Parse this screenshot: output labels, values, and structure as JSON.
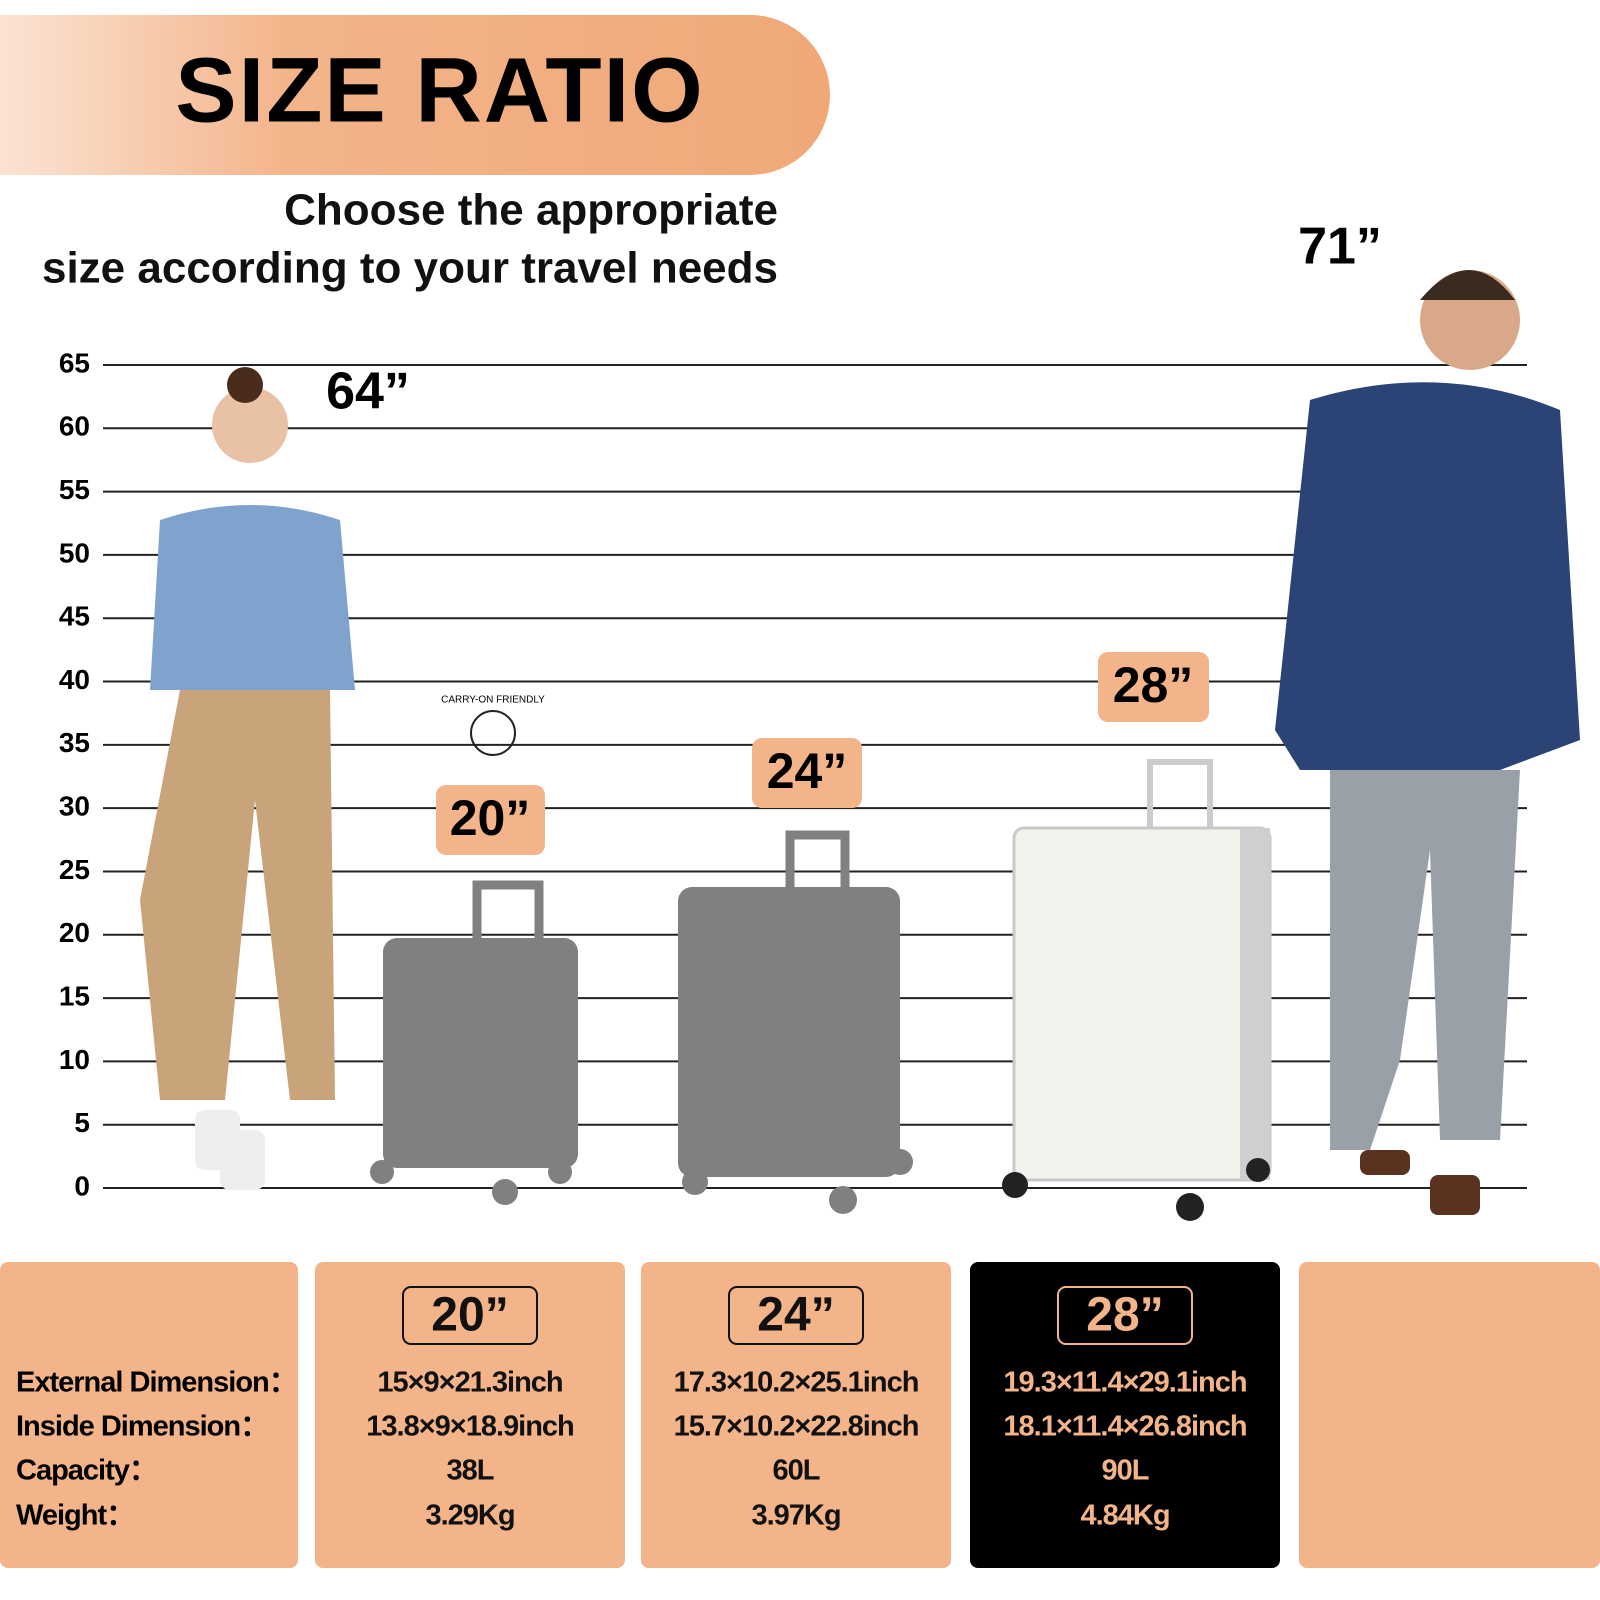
{
  "header": {
    "title": "SIZE RATIO",
    "subtitle": [
      "Choose the appropriate",
      "size according to your travel needs"
    ]
  },
  "scale": {
    "ticks": [
      65,
      60,
      55,
      50,
      45,
      40,
      35,
      30,
      25,
      20,
      15,
      10,
      5,
      0
    ]
  },
  "figures": {
    "woman_height": "64”",
    "man_height": "71”"
  },
  "suitcases": [
    {
      "size": "20”",
      "badge": "CARRY-ON FRIENDLY"
    },
    {
      "size": "24”"
    },
    {
      "size": "28”"
    }
  ],
  "spec_table": {
    "labels": [
      "External Dimension：",
      "Inside Dimension：",
      "Capacity：",
      "Weight："
    ],
    "columns": [
      {
        "size": "20”",
        "values": [
          "15×9×21.3inch",
          "13.8×9×18.9inch",
          "38L",
          "3.29Kg"
        ]
      },
      {
        "size": "24”",
        "values": [
          "17.3×10.2×25.1inch",
          "15.7×10.2×22.8inch",
          "60L",
          "3.97Kg"
        ]
      },
      {
        "size": "28”",
        "values": [
          "19.3×11.4×29.1inch",
          "18.1×11.4×26.8inch",
          "90L",
          "4.84Kg"
        ]
      }
    ]
  }
}
